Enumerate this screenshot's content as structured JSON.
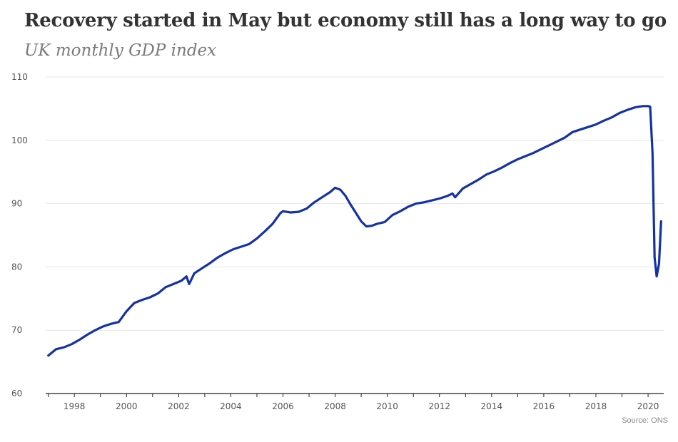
{
  "header": {
    "title": "Recovery started in May but economy still has a long way to go",
    "subtitle": "UK monthly GDP index"
  },
  "footer": {
    "source": "Source: ONS"
  },
  "colors": {
    "line": "#1432a8",
    "grid": "#e6e6e6",
    "axis": "#222222"
  },
  "chart_data": {
    "type": "line",
    "title": "Recovery started in May but economy still has a long way to go",
    "subtitle": "UK monthly GDP index",
    "xlabel": "",
    "ylabel": "",
    "xlim": [
      1996.9,
      2020.6
    ],
    "ylim": [
      60,
      110
    ],
    "y_ticks": [
      60,
      70,
      80,
      90,
      100,
      110
    ],
    "x_ticks": [
      1998,
      2000,
      2002,
      2004,
      2006,
      2008,
      2010,
      2012,
      2014,
      2016,
      2018,
      2020
    ],
    "grid": "horizontal",
    "legend": "none",
    "series": [
      {
        "color": "#1432a8",
        "x": [
          1997.0,
          1997.3,
          1997.6,
          1997.9,
          1998.2,
          1998.5,
          1998.8,
          1999.1,
          1999.4,
          1999.7,
          2000.0,
          2000.3,
          2000.6,
          2000.9,
          2001.2,
          2001.5,
          2001.8,
          2002.1,
          2002.3,
          2002.4,
          2002.6,
          2002.9,
          2003.2,
          2003.5,
          2003.8,
          2004.1,
          2004.4,
          2004.7,
          2005.0,
          2005.3,
          2005.6,
          2005.9,
          2006.0,
          2006.3,
          2006.6,
          2006.9,
          2007.2,
          2007.5,
          2007.8,
          2008.0,
          2008.2,
          2008.4,
          2008.6,
          2008.8,
          2009.0,
          2009.2,
          2009.4,
          2009.6,
          2009.9,
          2010.2,
          2010.5,
          2010.8,
          2011.1,
          2011.4,
          2011.7,
          2012.0,
          2012.3,
          2012.5,
          2012.6,
          2012.9,
          2013.2,
          2013.5,
          2013.8,
          2014.1,
          2014.4,
          2014.7,
          2015.0,
          2015.3,
          2015.6,
          2015.9,
          2016.2,
          2016.5,
          2016.8,
          2017.1,
          2017.4,
          2017.7,
          2018.0,
          2018.3,
          2018.6,
          2018.9,
          2019.2,
          2019.5,
          2019.8,
          2020.0,
          2020.08,
          2020.17,
          2020.25,
          2020.33,
          2020.42,
          2020.5
        ],
        "values": [
          66.0,
          67.0,
          67.3,
          67.8,
          68.5,
          69.3,
          70.0,
          70.6,
          71.0,
          71.3,
          73.0,
          74.3,
          74.8,
          75.2,
          75.8,
          76.8,
          77.3,
          77.8,
          78.5,
          77.3,
          79.0,
          79.8,
          80.6,
          81.5,
          82.2,
          82.8,
          83.2,
          83.6,
          84.5,
          85.6,
          86.8,
          88.5,
          88.8,
          88.6,
          88.7,
          89.2,
          90.2,
          91.0,
          91.8,
          92.5,
          92.2,
          91.2,
          89.8,
          88.5,
          87.2,
          86.4,
          86.5,
          86.8,
          87.1,
          88.2,
          88.8,
          89.5,
          90.0,
          90.2,
          90.5,
          90.8,
          91.2,
          91.6,
          91.0,
          92.4,
          93.1,
          93.8,
          94.6,
          95.1,
          95.7,
          96.4,
          97.0,
          97.5,
          98.0,
          98.6,
          99.2,
          99.8,
          100.4,
          101.3,
          101.7,
          102.1,
          102.5,
          103.1,
          103.6,
          104.3,
          104.8,
          105.2,
          105.4,
          105.4,
          105.3,
          98.0,
          81.5,
          78.5,
          80.5,
          87.2
        ]
      }
    ]
  }
}
